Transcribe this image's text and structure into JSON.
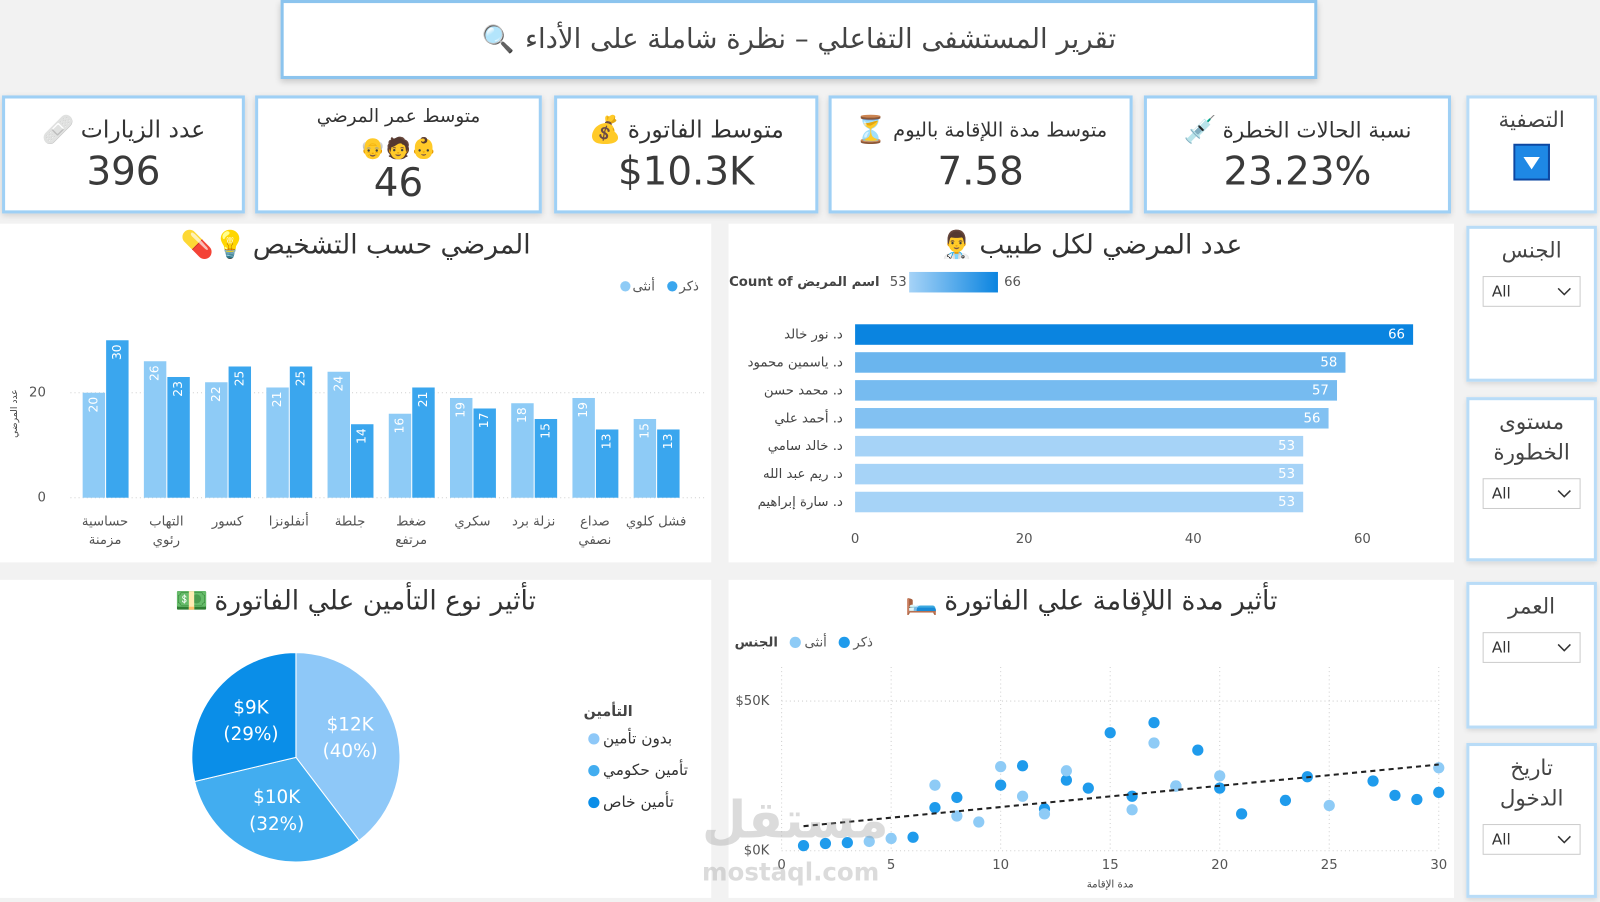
{
  "header": {
    "title": "تقرير المستشفى التفاعلي – نظرة شاملة على الأداء"
  },
  "kpis": [
    {
      "label": "عدد الزيارات",
      "value": 396
    },
    {
      "label": "متوسط عمر المرضي",
      "value": 46
    },
    {
      "label": "متوسط الفاتورة",
      "value": "$10.3K"
    },
    {
      "label": "متوسط مدة اللإقامة باليوم",
      "value": 7.58
    },
    {
      "label": "نسبة الحالات الخطرة",
      "value": "23.23%"
    }
  ],
  "filter_panel": {
    "title": "التصفية"
  },
  "slicers": [
    {
      "label": "الجنس",
      "selected": "All"
    },
    {
      "label": "مستوى الخطورة",
      "selected": "All"
    },
    {
      "label": "العمر",
      "selected": "All"
    },
    {
      "label": "تاريخ الدخول",
      "selected": "All"
    }
  ],
  "watermark": {
    "name": "مستقل",
    "url": "mostaql.com"
  },
  "chart_data": [
    {
      "type": "bar",
      "title": "المرضي حسب التشخيص",
      "y_label": "عدد المرضي",
      "categories": [
        "حساسية مزمنة",
        "التهاب رئوي",
        "كسور",
        "أنفلونزا",
        "جلطة",
        "ضغط مرتفع",
        "سكري",
        "نزلة برد",
        "صداع نصفي",
        "فشل كلوي"
      ],
      "series": [
        {
          "name": "ذكر",
          "color": "#3aa6ee",
          "values": [
            30,
            23,
            25,
            25,
            14,
            21,
            17,
            15,
            13,
            13
          ]
        },
        {
          "name": "أنثى",
          "color": "#8ecbf6",
          "values": [
            20,
            26,
            22,
            21,
            24,
            16,
            19,
            18,
            19,
            15
          ]
        }
      ],
      "ylim": [
        0,
        35
      ],
      "yticks": [
        0,
        20
      ],
      "grid": true
    },
    {
      "type": "hbar",
      "title": "عدد المرضي لكل طبيب",
      "categories": [
        "د. نور خالد",
        "د. ياسمين محمود",
        "د. محمد حسن",
        "د. أحمد علي",
        "د. خالد سامي",
        "د. ريم عبد الله",
        "د. سارة إبراهيم"
      ],
      "values": [
        66,
        58,
        57,
        56,
        53,
        53,
        53
      ],
      "xlim": [
        0,
        70
      ],
      "xticks": [
        0,
        20,
        40,
        60
      ],
      "color_scale": {
        "label": "Count of اسم المريض",
        "min": 53,
        "max": 66,
        "colors": [
          "#a6d3f7",
          "#0a84e0"
        ]
      }
    },
    {
      "type": "pie",
      "title": "تأثير نوع التأمين علي الفاتورة",
      "legend_title": "التأمين",
      "categories": [
        "بدون تأمين",
        "تأمين حكومي",
        "تأمين خاص"
      ],
      "values": [
        40,
        32,
        29
      ],
      "value_labels": [
        "(40%)",
        "(32%)",
        "(29%)"
      ],
      "amount_labels": [
        "$12K",
        "$10K",
        "$9K"
      ],
      "colors": [
        "#8ec8f8",
        "#42adf0",
        "#0a8ee8"
      ]
    },
    {
      "type": "scatter",
      "title": "تأثير مدة اللإقامة علي الفاتورة",
      "x_label": "مدة الإقامة",
      "legend_title": "الجنس",
      "series": [
        {
          "name": "ذكر",
          "color": "#1f9bec",
          "x": [
            1,
            2,
            3,
            6,
            7,
            8,
            10,
            11,
            12,
            13,
            14,
            15,
            16,
            17,
            18,
            19,
            20,
            21,
            23,
            24,
            27,
            28,
            29,
            30
          ],
          "values": [
            1700,
            2400,
            2700,
            4500,
            14400,
            17800,
            21900,
            28400,
            14000,
            23600,
            20900,
            39400,
            18200,
            42800,
            21600,
            33600,
            20900,
            12300,
            16800,
            24700,
            23300,
            18500,
            17100,
            19500
          ]
        },
        {
          "name": "أنثى",
          "color": "#8ecbf6",
          "x": [
            4,
            5,
            7,
            8,
            9,
            10,
            11,
            12,
            13,
            16,
            17,
            18,
            20,
            25,
            30
          ],
          "values": [
            3100,
            4100,
            21900,
            11600,
            9600,
            28100,
            18200,
            12300,
            26700,
            13700,
            36000,
            21600,
            25000,
            15100,
            27700
          ]
        }
      ],
      "trendline": {
        "x": [
          1,
          30
        ],
        "values": [
          8200,
          28800
        ]
      },
      "xlim": [
        0,
        30
      ],
      "ylim": [
        0,
        60000
      ],
      "xticks": [
        0,
        5,
        10,
        15,
        20,
        25,
        30
      ],
      "yticks": [
        {
          "value": 0,
          "label": "$0K"
        },
        {
          "value": 50000,
          "label": "$50K"
        }
      ],
      "grid": true
    }
  ]
}
